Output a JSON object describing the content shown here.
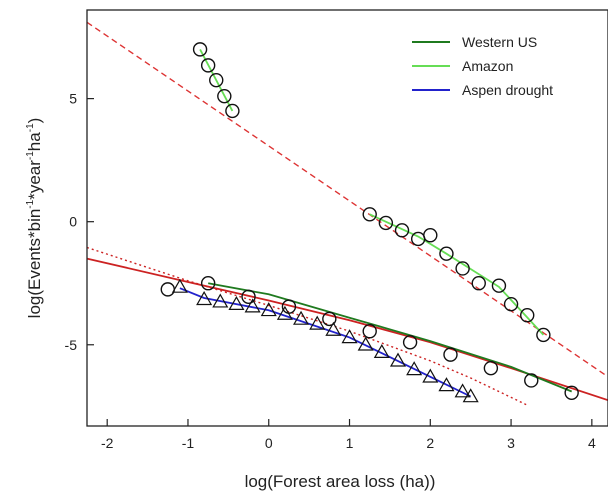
{
  "chart_data": {
    "type": "scatter",
    "xlabel": "log(Forest area loss (ha))",
    "ylabel_parts": [
      "log(Events*bin",
      "-1",
      "*year",
      "-1",
      "ha",
      "-1",
      ")"
    ],
    "xlim": [
      -2.25,
      4.2
    ],
    "ylim": [
      -8.3,
      8.6
    ],
    "xticks": [
      -2,
      -1,
      0,
      1,
      2,
      3,
      4
    ],
    "yticks": [
      -5,
      0,
      5
    ],
    "xtick_labels": [
      "-2",
      "-1",
      "0",
      "1",
      "2",
      "3",
      "4"
    ],
    "ytick_labels": [
      "-5",
      "0",
      "5"
    ],
    "grid": false,
    "legend_position": "top-right",
    "legend": [
      {
        "label": "Western US",
        "color": "#1f7a1f"
      },
      {
        "label": "Amazon",
        "color": "#66dd55"
      },
      {
        "label": "Aspen drought",
        "color": "#2222cc"
      }
    ],
    "series": [
      {
        "name": "Western US",
        "marker": "circle",
        "color": "#1f7a1f",
        "x": [
          -1.25,
          -0.75,
          -0.25,
          0.25,
          0.75,
          1.25,
          1.75,
          2.25,
          2.75,
          3.25,
          3.75
        ],
        "y": [
          -2.75,
          -2.5,
          -3.05,
          -3.45,
          -3.95,
          -4.45,
          -4.9,
          -5.4,
          -5.95,
          -6.45,
          -6.95
        ]
      },
      {
        "name": "Amazon",
        "marker": "circle",
        "color": "#66dd55",
        "x": [
          -0.85,
          -0.75,
          -0.65,
          -0.55,
          -0.45,
          1.25,
          1.45,
          1.65,
          1.85,
          2.0,
          2.2,
          2.4,
          2.6,
          2.85,
          3.0,
          3.2,
          3.4
        ],
        "y": [
          7.0,
          6.35,
          5.75,
          5.1,
          4.5,
          0.3,
          -0.05,
          -0.35,
          -0.7,
          -0.55,
          -1.3,
          -1.9,
          -2.5,
          -2.6,
          -3.35,
          -3.8,
          -4.6
        ]
      },
      {
        "name": "Aspen drought",
        "marker": "triangle",
        "color": "#2222cc",
        "x": [
          -1.1,
          -0.8,
          -0.6,
          -0.4,
          -0.2,
          0.0,
          0.2,
          0.4,
          0.6,
          0.8,
          1.0,
          1.2,
          1.4,
          1.6,
          1.8,
          2.0,
          2.2,
          2.4,
          2.5
        ],
        "y": [
          -2.65,
          -3.15,
          -3.25,
          -3.35,
          -3.45,
          -3.6,
          -3.75,
          -3.95,
          -4.15,
          -4.4,
          -4.7,
          -5.0,
          -5.3,
          -5.65,
          -6.0,
          -6.3,
          -6.65,
          -6.9,
          -7.1
        ]
      }
    ],
    "fit_lines": [
      {
        "style": "dashed",
        "color": "#dd3333",
        "points": [
          [
            -2.25,
            8.1
          ],
          [
            4.2,
            -6.3
          ]
        ]
      },
      {
        "style": "dotted",
        "color": "#cc2222",
        "points": [
          [
            -2.25,
            -1.05
          ],
          [
            -1.0,
            -2.4
          ],
          [
            0.0,
            -3.4
          ],
          [
            1.0,
            -4.45
          ],
          [
            2.0,
            -5.65
          ],
          [
            2.5,
            -6.35
          ],
          [
            3.2,
            -7.45
          ]
        ]
      },
      {
        "style": "solid",
        "color": "#cc2222",
        "points": [
          [
            -2.25,
            -1.5
          ],
          [
            -1.0,
            -2.45
          ],
          [
            0.0,
            -3.2
          ],
          [
            1.0,
            -4.0
          ],
          [
            2.0,
            -4.9
          ],
          [
            3.0,
            -5.95
          ],
          [
            4.2,
            -7.25
          ]
        ]
      },
      {
        "style": "solid",
        "color": "#1f7a1f",
        "points": [
          [
            -0.75,
            -2.5
          ],
          [
            0.0,
            -2.95
          ],
          [
            1.0,
            -3.9
          ],
          [
            2.0,
            -4.85
          ],
          [
            3.0,
            -5.9
          ],
          [
            3.75,
            -6.9
          ]
        ]
      },
      {
        "style": "solid",
        "color": "#66dd55",
        "points": [
          [
            -0.85,
            7.0
          ],
          [
            -0.45,
            4.5
          ]
        ]
      },
      {
        "style": "solid",
        "color": "#66dd55",
        "points": [
          [
            1.25,
            0.3
          ],
          [
            1.85,
            -0.6
          ],
          [
            2.2,
            -1.3
          ],
          [
            2.85,
            -2.65
          ],
          [
            3.4,
            -4.6
          ]
        ]
      },
      {
        "style": "solid",
        "color": "#2222cc",
        "points": [
          [
            -1.1,
            -2.7
          ],
          [
            -0.8,
            -3.1
          ],
          [
            0.0,
            -3.6
          ],
          [
            1.0,
            -4.7
          ],
          [
            2.0,
            -6.3
          ],
          [
            2.5,
            -7.1
          ]
        ]
      }
    ]
  }
}
